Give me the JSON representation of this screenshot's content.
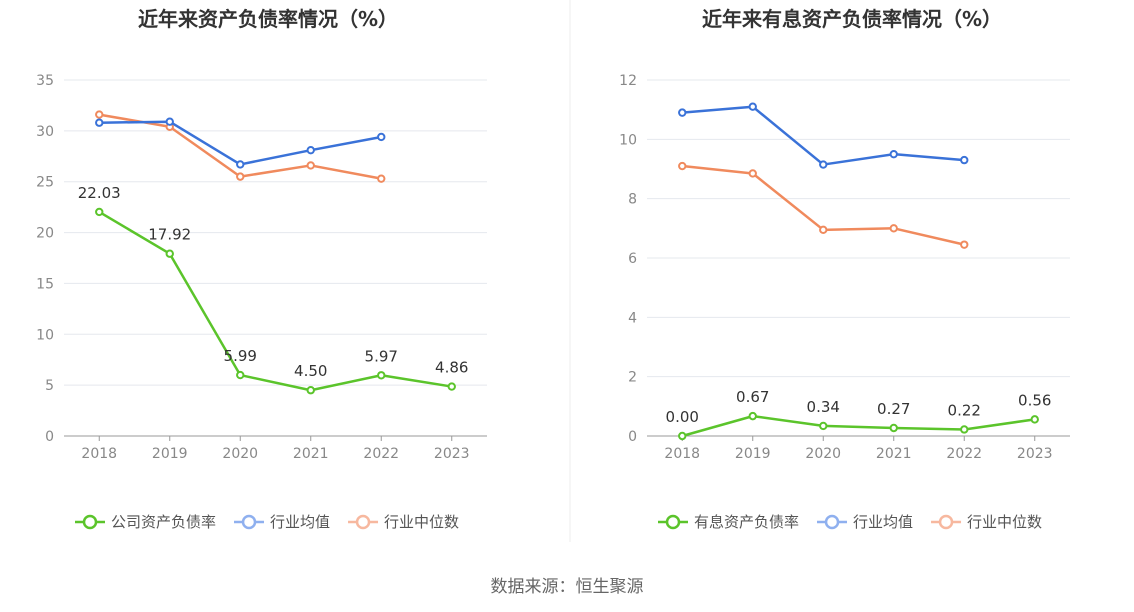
{
  "source_label": "数据来源：恒生聚源",
  "colors": {
    "green": "#5bc42b",
    "blue": "#3a72d8",
    "orange": "#f08a5d",
    "blue_legend": "#8fb0ef",
    "orange_legend": "#f7b89f",
    "grid": "#e5e8ee",
    "axis": "#999999"
  },
  "chart_data": [
    {
      "type": "line",
      "title": "近年来资产负债率情况（%）",
      "categories": [
        "2018",
        "2019",
        "2020",
        "2021",
        "2022",
        "2023"
      ],
      "ylim": [
        0,
        35
      ],
      "yticks": [
        0,
        5,
        10,
        15,
        20,
        25,
        30,
        35
      ],
      "grid": true,
      "legend": "bottom",
      "series": [
        {
          "name": "公司资产负债率",
          "values": [
            22.03,
            17.92,
            5.99,
            4.5,
            5.97,
            4.86
          ],
          "labels": [
            "22.03",
            "17.92",
            "5.99",
            "4.50",
            "5.97",
            "4.86"
          ],
          "color": "#5bc42b"
        },
        {
          "name": "行业均值",
          "values": [
            30.8,
            30.9,
            26.7,
            28.1,
            29.4,
            null
          ],
          "color": "#3a72d8"
        },
        {
          "name": "行业中位数",
          "values": [
            31.6,
            30.4,
            25.5,
            26.6,
            25.3,
            null
          ],
          "color": "#f08a5d"
        }
      ]
    },
    {
      "type": "line",
      "title": "近年来有息资产负债率情况（%）",
      "categories": [
        "2018",
        "2019",
        "2020",
        "2021",
        "2022",
        "2023"
      ],
      "ylim": [
        0,
        12
      ],
      "yticks": [
        0,
        2,
        4,
        6,
        8,
        10,
        12
      ],
      "grid": true,
      "legend": "bottom",
      "series": [
        {
          "name": "有息资产负债率",
          "values": [
            0.0,
            0.67,
            0.34,
            0.27,
            0.22,
            0.56
          ],
          "labels": [
            "0.00",
            "0.67",
            "0.34",
            "0.27",
            "0.22",
            "0.56"
          ],
          "color": "#5bc42b"
        },
        {
          "name": "行业均值",
          "values": [
            10.9,
            11.1,
            9.15,
            9.5,
            9.3,
            null
          ],
          "color": "#3a72d8"
        },
        {
          "name": "行业中位数",
          "values": [
            9.1,
            8.85,
            6.95,
            7.0,
            6.45,
            null
          ],
          "color": "#f08a5d"
        }
      ]
    }
  ]
}
